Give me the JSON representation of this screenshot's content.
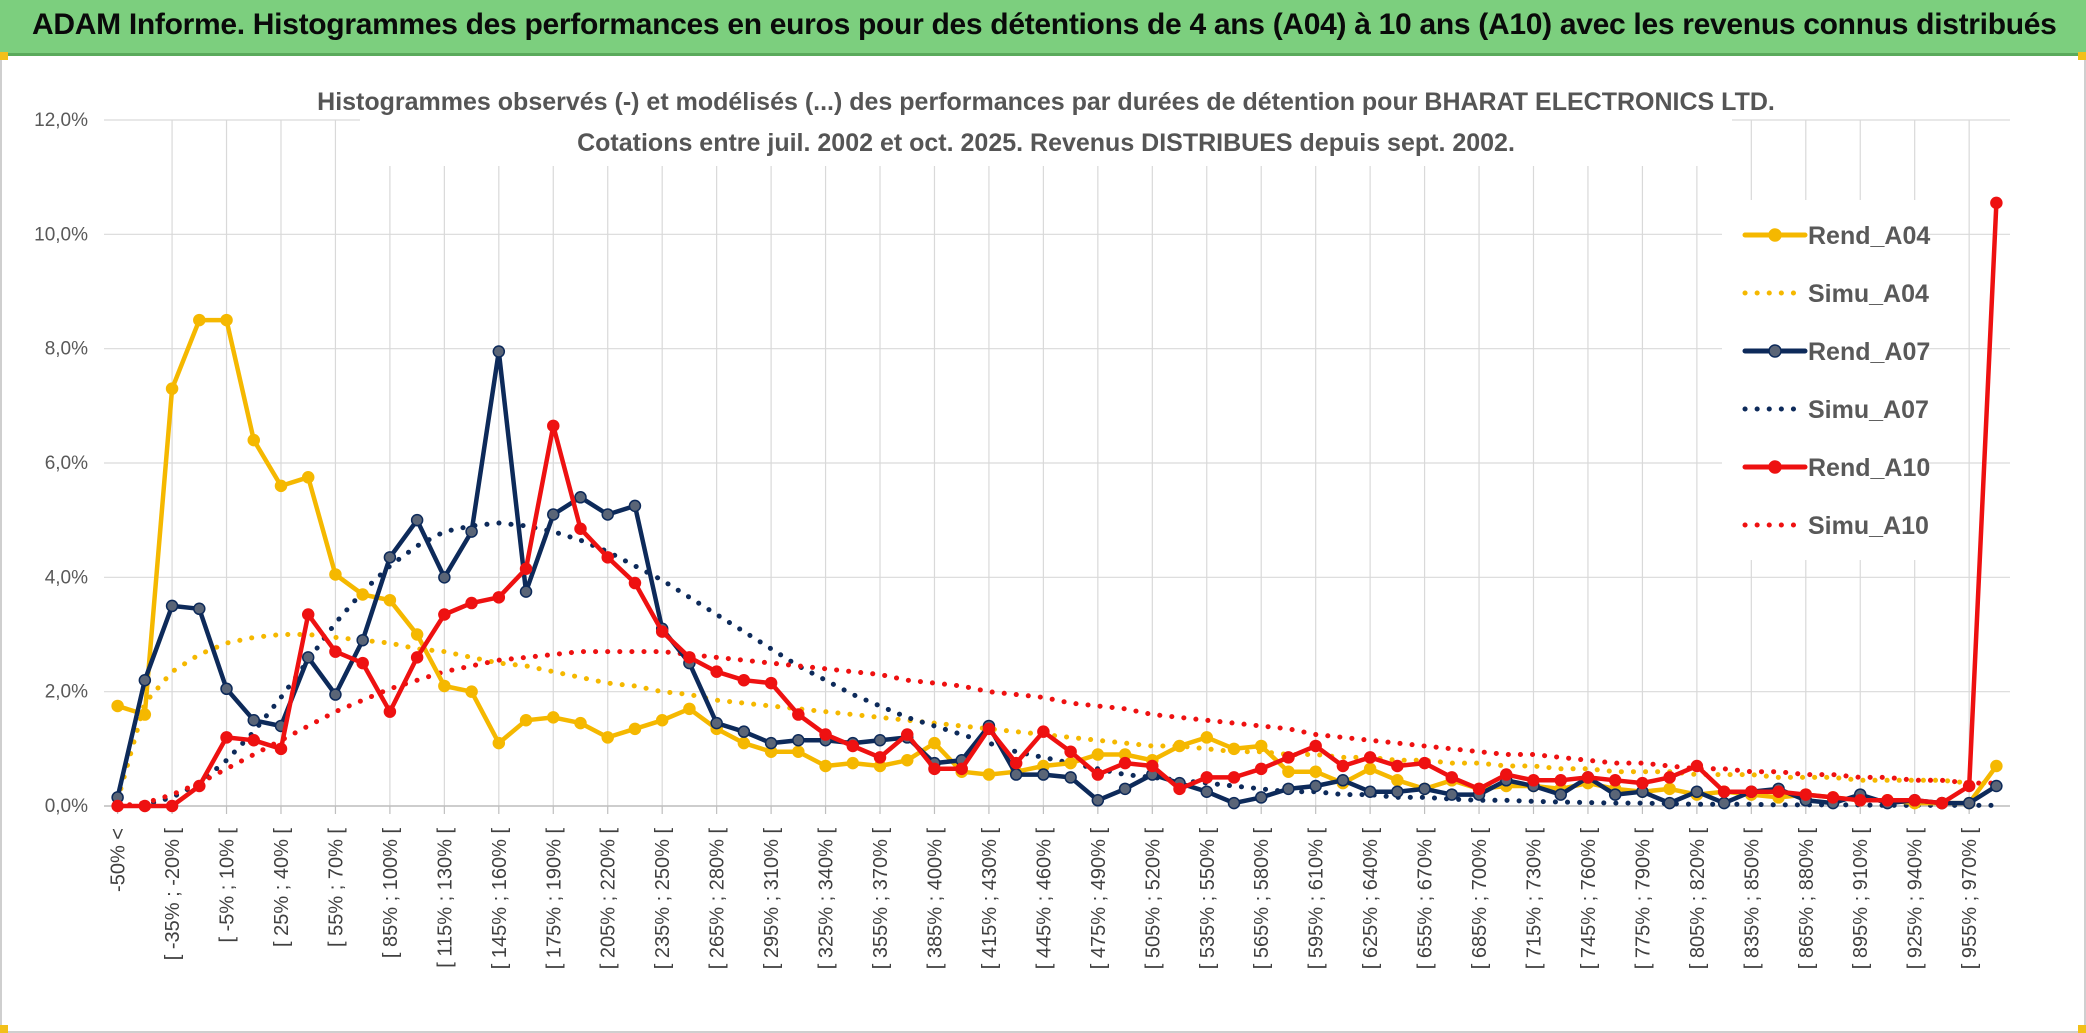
{
  "banner": {
    "title": "ADAM Informe. Histogrammes des performances en euros pour des détentions de 4 ans (A04) à 10 ans (A10) avec les revenus connus distribués",
    "bg_color": "#7ccf7e"
  },
  "chart_data": {
    "type": "line",
    "title": "Histogrammes observés (-) et modélisés (...) des performances par durées de détention pour BHARAT ELECTRONICS LTD.",
    "subtitle": "Cotations entre juil. 2002 et oct. 2025. Revenus DISTRIBUES depuis sept. 2002.",
    "xlabel": "",
    "ylabel": "",
    "ylim": [
      0,
      12
    ],
    "yticks": [
      "0,0%",
      "2,0%",
      "4,0%",
      "6,0%",
      "8,0%",
      "10,0%",
      "12,0%"
    ],
    "grid": true,
    "legend_position": "right",
    "x_labels": [
      "-50% <",
      "[ -35% ; -20% [",
      "[ -5% ; 10% [",
      "[ 25% ; 40% [",
      "[ 55% ; 70% [",
      "[ 85% ; 100% [",
      "[ 115% ; 130% [",
      "[ 145% ; 160% [",
      "[ 175% ; 190% [",
      "[ 205% ; 220% [",
      "[ 235% ; 250% [",
      "[ 265% ; 280% [",
      "[ 295% ; 310% [",
      "[ 325% ; 340% [",
      "[ 355% ; 370% [",
      "[ 385% ; 400% [",
      "[ 415% ; 430% [",
      "[ 445% ; 460% [",
      "[ 475% ; 490% [",
      "[ 505% ; 520% [",
      "[ 535% ; 550% [",
      "[ 565% ; 580% [",
      "[ 595% ; 610% [",
      "[ 625% ; 640% [",
      "[ 655% ; 670% [",
      "[ 685% ; 700% [",
      "[ 715% ; 730% [",
      "[ 745% ; 760% [",
      "[ 775% ; 790% [",
      "[ 805% ; 820% [",
      "[ 835% ; 850% [",
      "[ 865% ; 880% [",
      "[ 895% ; 910% [",
      "[ 925% ; 940% [",
      "[ 955% ; 970% ["
    ],
    "n_points": 70,
    "series": [
      {
        "name": "Rend_A04",
        "color": "#f5b800",
        "style": "solid",
        "markers": true,
        "values": [
          1.75,
          1.6,
          7.3,
          8.5,
          8.5,
          6.4,
          5.6,
          5.75,
          4.05,
          3.7,
          3.6,
          3.0,
          2.1,
          2.0,
          1.1,
          1.5,
          1.55,
          1.45,
          1.2,
          1.35,
          1.5,
          1.7,
          1.35,
          1.1,
          0.95,
          0.95,
          0.7,
          0.75,
          0.7,
          0.8,
          1.1,
          0.6,
          0.55,
          0.6,
          0.7,
          0.75,
          0.9,
          0.9,
          0.8,
          1.05,
          1.2,
          1.0,
          1.05,
          0.6,
          0.6,
          0.4,
          0.65,
          0.45,
          0.3,
          0.45,
          0.3,
          0.35,
          0.35,
          0.3,
          0.4,
          0.3,
          0.25,
          0.3,
          0.2,
          0.25,
          0.2,
          0.15,
          0.2,
          0.15,
          0.1,
          0.1,
          0.05,
          0.05,
          0.05,
          0.7
        ]
      },
      {
        "name": "Simu_A04",
        "color": "#f5b800",
        "style": "dotted",
        "markers": false,
        "values": [
          0.1,
          1.8,
          2.35,
          2.65,
          2.85,
          2.95,
          3.0,
          3.0,
          2.95,
          2.9,
          2.85,
          2.75,
          2.7,
          2.6,
          2.5,
          2.45,
          2.35,
          2.25,
          2.15,
          2.1,
          2.0,
          1.95,
          1.85,
          1.8,
          1.75,
          1.7,
          1.65,
          1.6,
          1.55,
          1.5,
          1.45,
          1.4,
          1.35,
          1.3,
          1.25,
          1.2,
          1.15,
          1.1,
          1.05,
          1.05,
          1.0,
          0.95,
          0.95,
          0.9,
          0.9,
          0.85,
          0.85,
          0.8,
          0.8,
          0.75,
          0.75,
          0.7,
          0.7,
          0.65,
          0.65,
          0.6,
          0.6,
          0.6,
          0.55,
          0.55,
          0.55,
          0.5,
          0.5,
          0.5,
          0.45,
          0.45,
          0.45,
          0.45,
          0.4,
          0.4
        ]
      },
      {
        "name": "Rend_A07",
        "color": "#0d2a5a",
        "style": "solid",
        "markers": true,
        "values": [
          0.15,
          2.2,
          3.5,
          3.45,
          2.05,
          1.5,
          1.4,
          2.6,
          1.95,
          2.9,
          4.35,
          5.0,
          4.0,
          4.8,
          7.95,
          3.75,
          5.1,
          5.4,
          5.1,
          5.25,
          3.1,
          2.5,
          1.45,
          1.3,
          1.1,
          1.15,
          1.15,
          1.1,
          1.15,
          1.2,
          0.75,
          0.8,
          1.4,
          0.55,
          0.55,
          0.5,
          0.1,
          0.3,
          0.55,
          0.4,
          0.25,
          0.05,
          0.15,
          0.3,
          0.35,
          0.45,
          0.25,
          0.25,
          0.3,
          0.2,
          0.2,
          0.45,
          0.35,
          0.2,
          0.5,
          0.2,
          0.25,
          0.05,
          0.25,
          0.05,
          0.25,
          0.3,
          0.1,
          0.05,
          0.2,
          0.05,
          0.1,
          0.05,
          0.05,
          0.35
        ]
      },
      {
        "name": "Simu_A07",
        "color": "#0d2a5a",
        "style": "dotted",
        "markers": false,
        "values": [
          0.0,
          0.02,
          0.15,
          0.4,
          0.8,
          1.3,
          1.9,
          2.55,
          3.2,
          3.75,
          4.2,
          4.55,
          4.8,
          4.9,
          4.95,
          4.9,
          4.8,
          4.65,
          4.45,
          4.2,
          3.95,
          3.65,
          3.35,
          3.05,
          2.75,
          2.45,
          2.2,
          1.95,
          1.75,
          1.55,
          1.4,
          1.25,
          1.1,
          0.95,
          0.85,
          0.75,
          0.65,
          0.55,
          0.5,
          0.45,
          0.4,
          0.35,
          0.3,
          0.25,
          0.25,
          0.2,
          0.2,
          0.15,
          0.15,
          0.12,
          0.1,
          0.1,
          0.08,
          0.07,
          0.06,
          0.05,
          0.05,
          0.04,
          0.03,
          0.03,
          0.03,
          0.02,
          0.02,
          0.02,
          0.02,
          0.01,
          0.01,
          0.01,
          0.01,
          0.01
        ]
      },
      {
        "name": "Rend_A10",
        "color": "#ee1111",
        "style": "solid",
        "markers": true,
        "values": [
          0.0,
          0.0,
          0.0,
          0.35,
          1.2,
          1.15,
          1.0,
          3.35,
          2.7,
          2.5,
          1.65,
          2.6,
          3.35,
          3.55,
          3.65,
          4.15,
          6.65,
          4.85,
          4.35,
          3.9,
          3.05,
          2.6,
          2.35,
          2.2,
          2.15,
          1.6,
          1.25,
          1.05,
          0.85,
          1.25,
          0.65,
          0.65,
          1.35,
          0.75,
          1.3,
          0.95,
          0.55,
          0.75,
          0.7,
          0.3,
          0.5,
          0.5,
          0.65,
          0.85,
          1.05,
          0.7,
          0.85,
          0.7,
          0.75,
          0.5,
          0.3,
          0.55,
          0.45,
          0.45,
          0.5,
          0.45,
          0.4,
          0.5,
          0.7,
          0.25,
          0.25,
          0.25,
          0.2,
          0.15,
          0.1,
          0.1,
          0.1,
          0.05,
          0.35,
          10.55
        ]
      },
      {
        "name": "Simu_A10",
        "color": "#ee1111",
        "style": "dotted",
        "markers": false,
        "values": [
          0.0,
          0.05,
          0.2,
          0.4,
          0.65,
          0.9,
          1.15,
          1.4,
          1.65,
          1.85,
          2.05,
          2.2,
          2.35,
          2.45,
          2.55,
          2.6,
          2.65,
          2.7,
          2.7,
          2.7,
          2.7,
          2.65,
          2.6,
          2.55,
          2.5,
          2.45,
          2.4,
          2.35,
          2.3,
          2.2,
          2.15,
          2.1,
          2.0,
          1.95,
          1.9,
          1.8,
          1.75,
          1.7,
          1.6,
          1.55,
          1.5,
          1.45,
          1.4,
          1.35,
          1.25,
          1.2,
          1.15,
          1.1,
          1.05,
          1.0,
          0.95,
          0.9,
          0.9,
          0.85,
          0.8,
          0.75,
          0.75,
          0.7,
          0.65,
          0.65,
          0.6,
          0.6,
          0.55,
          0.55,
          0.5,
          0.5,
          0.45,
          0.45,
          0.4,
          0.4
        ]
      }
    ]
  }
}
